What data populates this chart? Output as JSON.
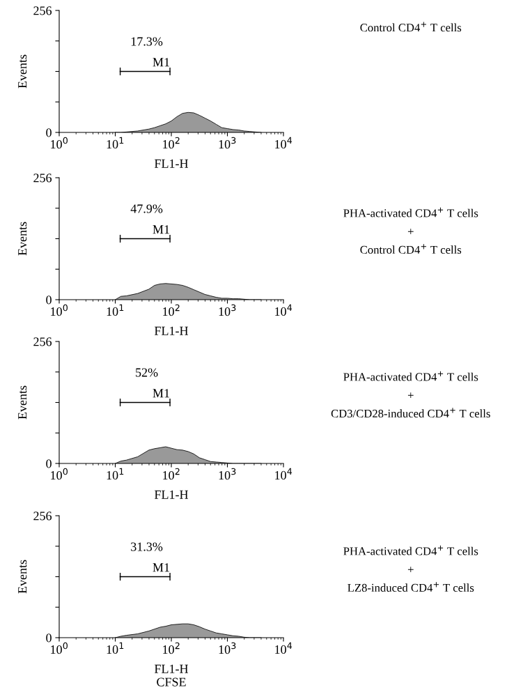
{
  "chart_data": [
    {
      "type": "area",
      "ylabel": "Events",
      "xlabel": "FL1-H",
      "log": "x",
      "x": [
        10,
        12.6,
        15.8,
        25.1,
        39.8,
        50.1,
        63.1,
        79.4,
        100,
        125.9,
        158.5,
        199.5,
        251.2,
        316.2,
        398.1,
        501.2,
        631,
        794.3,
        1000,
        1259,
        1585,
        1995,
        2512,
        3162,
        3981
      ],
      "series": [
        {
          "color": "#999999",
          "values": [
            0,
            0,
            1,
            3,
            7,
            10,
            14,
            18,
            24,
            33,
            40,
            42,
            41,
            36,
            30,
            24,
            17,
            10,
            8,
            6,
            5,
            3,
            2,
            1,
            0
          ]
        }
      ],
      "xlim": [
        1,
        10000
      ],
      "xticks": [
        {
          "value": 1,
          "label": "10$^{0}$"
        },
        {
          "value": 10,
          "label": "10$^{1}$"
        },
        {
          "value": 100,
          "label": "10$^{2}$"
        },
        {
          "value": 1000,
          "label": "10$^{3}$"
        },
        {
          "value": 10000,
          "label": "10$^{4}$"
        }
      ],
      "ylim": [
        0,
        256
      ],
      "yticks": [
        0,
        {
          "value": 64,
          "label": null
        },
        {
          "value": 128,
          "label": null
        },
        {
          "value": 192,
          "label": null
        },
        256
      ],
      "annotations": [
        "17.3%",
        "M1",
        "Control CD4$^{+}$ T cells"
      ]
    },
    {
      "type": "area",
      "ylabel": "Events",
      "xlabel": "FL1-H",
      "log": "x",
      "x": [
        10,
        12.6,
        15.8,
        25.1,
        39.8,
        50.1,
        63.1,
        79.4,
        100,
        125.9,
        158.5,
        199.5,
        251.2,
        316.2,
        398.1,
        501.2,
        631,
        794.3,
        1000,
        1259,
        1585,
        1995,
        2512,
        3162,
        3981
      ],
      "series": [
        {
          "color": "#999999",
          "values": [
            0,
            7,
            8,
            13,
            22,
            30,
            33,
            34,
            33,
            32,
            30,
            26,
            21,
            16,
            11,
            8,
            5,
            3,
            3,
            2,
            2,
            1,
            0,
            0,
            0
          ]
        }
      ],
      "xlim": [
        1,
        10000
      ],
      "xticks": [
        {
          "value": 1,
          "label": "10$^{0}$"
        },
        {
          "value": 10,
          "label": "10$^{1}$"
        },
        {
          "value": 100,
          "label": "10$^{2}$"
        },
        {
          "value": 1000,
          "label": "10$^{3}$"
        },
        {
          "value": 10000,
          "label": "10$^{4}$"
        }
      ],
      "ylim": [
        0,
        256
      ],
      "yticks": [
        0,
        {
          "value": 64,
          "label": null
        },
        {
          "value": 128,
          "label": null
        },
        {
          "value": 192,
          "label": null
        },
        256
      ],
      "annotations": [
        "47.9%",
        "M1",
        "PHA-activated CD4$^{+}$ T cells",
        "+",
        "Control CD4$^{+}$ T cells"
      ]
    },
    {
      "type": "area",
      "ylabel": "Events",
      "xlabel": "FL1-H",
      "log": "x",
      "x": [
        10,
        12.6,
        15.8,
        25.1,
        39.8,
        50.1,
        63.1,
        79.4,
        100,
        125.9,
        158.5,
        199.5,
        251.2,
        316.2,
        398.1,
        501.2,
        631,
        794.3,
        1000,
        1259,
        1585,
        1995,
        2512,
        3162,
        3981
      ],
      "series": [
        {
          "color": "#999999",
          "values": [
            0,
            5,
            7,
            14,
            28,
            31,
            33,
            35,
            32,
            29,
            28,
            25,
            20,
            12,
            8,
            4,
            3,
            2,
            1,
            0,
            0,
            0,
            0,
            0,
            0
          ]
        }
      ],
      "xlim": [
        1,
        10000
      ],
      "xticks": [
        {
          "value": 1,
          "label": "10$^{0}$"
        },
        {
          "value": 10,
          "label": "10$^{1}$"
        },
        {
          "value": 100,
          "label": "10$^{2}$"
        },
        {
          "value": 1000,
          "label": "10$^{3}$"
        },
        {
          "value": 10000,
          "label": "10$^{4}$"
        }
      ],
      "ylim": [
        0,
        256
      ],
      "yticks": [
        0,
        {
          "value": 64,
          "label": null
        },
        {
          "value": 128,
          "label": null
        },
        {
          "value": 192,
          "label": null
        },
        256
      ],
      "annotations": [
        "52%",
        "M1",
        "PHA-activated CD4$^{+}$ T cells",
        "+",
        "CD3/CD28-induced CD4$^{+}$ T cells"
      ]
    },
    {
      "type": "area",
      "ylabel": "Events",
      "xlabel": "FL1-H\nCFSE",
      "log": "x",
      "x": [
        10,
        12.6,
        15.8,
        25.1,
        39.8,
        50.1,
        63.1,
        79.4,
        100,
        125.9,
        158.5,
        199.5,
        251.2,
        316.2,
        398.1,
        501.2,
        631,
        794.3,
        1000,
        1259,
        1585,
        1995,
        2512,
        3162,
        3981
      ],
      "series": [
        {
          "color": "#999999",
          "values": [
            0,
            3,
            5,
            8,
            14,
            18,
            22,
            24,
            27,
            28,
            29,
            29,
            27,
            23,
            18,
            14,
            10,
            8,
            6,
            4,
            3,
            1,
            0,
            0,
            0
          ]
        }
      ],
      "xlim": [
        1,
        10000
      ],
      "xticks": [
        {
          "value": 1,
          "label": "10$^{0}$"
        },
        {
          "value": 10,
          "label": "10$^{1}$"
        },
        {
          "value": 100,
          "label": "10$^{2}$"
        },
        {
          "value": 1000,
          "label": "10$^{3}$"
        },
        {
          "value": 10000,
          "label": "10$^{4}$"
        }
      ],
      "ylim": [
        0,
        256
      ],
      "yticks": [
        0,
        {
          "value": 64,
          "label": null
        },
        {
          "value": 128,
          "label": null
        },
        {
          "value": 192,
          "label": null
        },
        256
      ],
      "annotations": [
        "31.3%",
        "M1",
        "PHA-activated CD4$^{+}$ T cells",
        "+",
        "LZ8-induced CD4$^{+}$ T cells"
      ]
    }
  ]
}
